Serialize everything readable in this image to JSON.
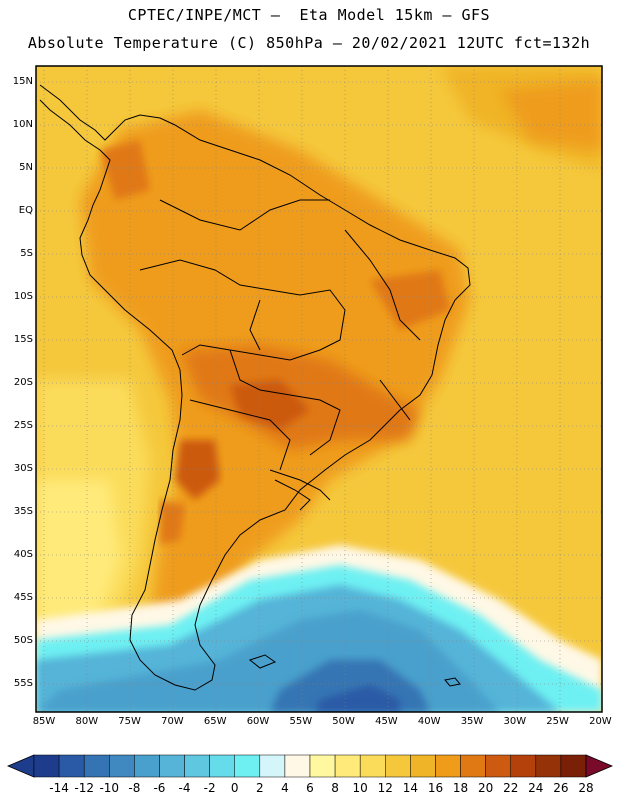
{
  "header": {
    "title_line1": "CPTEC/INPE/MCT –  Eta Model 15km – GFS",
    "title_line2": "Absolute Temperature (C) 850hPa – 20/02/2021 12UTC fct=132h"
  },
  "map": {
    "latitude_labels": [
      "15N",
      "10N",
      "5N",
      "EQ",
      "5S",
      "10S",
      "15S",
      "20S",
      "25S",
      "30S",
      "35S",
      "40S",
      "45S",
      "50S",
      "55S"
    ],
    "longitude_labels": [
      "85W",
      "80W",
      "75W",
      "70W",
      "65W",
      "60W",
      "55W",
      "50W",
      "45W",
      "40W",
      "35W",
      "30W",
      "25W",
      "20W"
    ]
  },
  "colorbar": {
    "labels": [
      "-14",
      "-12",
      "-10",
      "-8",
      "-6",
      "-4",
      "-2",
      "0",
      "2",
      "4",
      "6",
      "8",
      "10",
      "12",
      "14",
      "16",
      "18",
      "20",
      "22",
      "24",
      "26",
      "28"
    ],
    "colors": [
      "#1e3c8c",
      "#2a5aa6",
      "#3574b4",
      "#3f88c0",
      "#4aa0cc",
      "#55b4d8",
      "#5fc8e0",
      "#66dcea",
      "#6ef0f2",
      "#d4f5fa",
      "#fff8e6",
      "#fff8a0",
      "#ffea7a",
      "#fbdc5a",
      "#f5c83c",
      "#f0b428",
      "#ef9c1a",
      "#e07814",
      "#cc5a10",
      "#b4400c",
      "#963208",
      "#7a2006"
    ]
  }
}
